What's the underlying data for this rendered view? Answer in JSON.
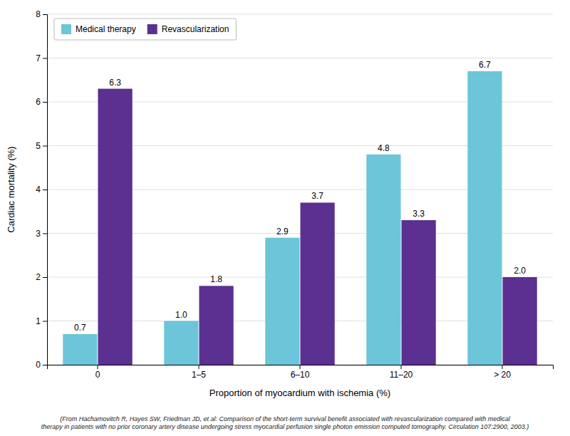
{
  "chart_data": {
    "type": "bar",
    "categories": [
      "0",
      "1–5",
      "6–10",
      "11–20",
      "> 20"
    ],
    "series": [
      {
        "name": "Medical therapy",
        "color": "#6CC5D9",
        "values": [
          0.7,
          1.0,
          2.9,
          4.8,
          6.7
        ],
        "value_labels": [
          "0.7",
          "1.0",
          "2.9",
          "4.8",
          "6.7"
        ]
      },
      {
        "name": "Revascularization",
        "color": "#5B3090",
        "values": [
          6.3,
          1.8,
          3.7,
          3.3,
          2.0
        ],
        "value_labels": [
          "6.3",
          "1.8",
          "3.7",
          "3.3",
          "2.0"
        ]
      }
    ],
    "x_label": "Proportion of myocardium with ischemia (%)",
    "y_label": "Cardiac mortality (%)",
    "ylim": [
      0,
      8
    ],
    "yticks": [
      0,
      1,
      2,
      3,
      4,
      5,
      6,
      7,
      8
    ],
    "grid": true,
    "legend": "top-left",
    "data_labels": true,
    "annotations": [
      "(From Hachamovitch R, Hayes SW, Friedman JD, et al: Comparison of the short-term survival benefit associated with revascularization compared with medical\ntherapy in patients with no prior coronary artery disease undergoing stress myocardial perfusion single photon emission computed tomography. Circulation 107:2900, 2003.)"
    ]
  }
}
